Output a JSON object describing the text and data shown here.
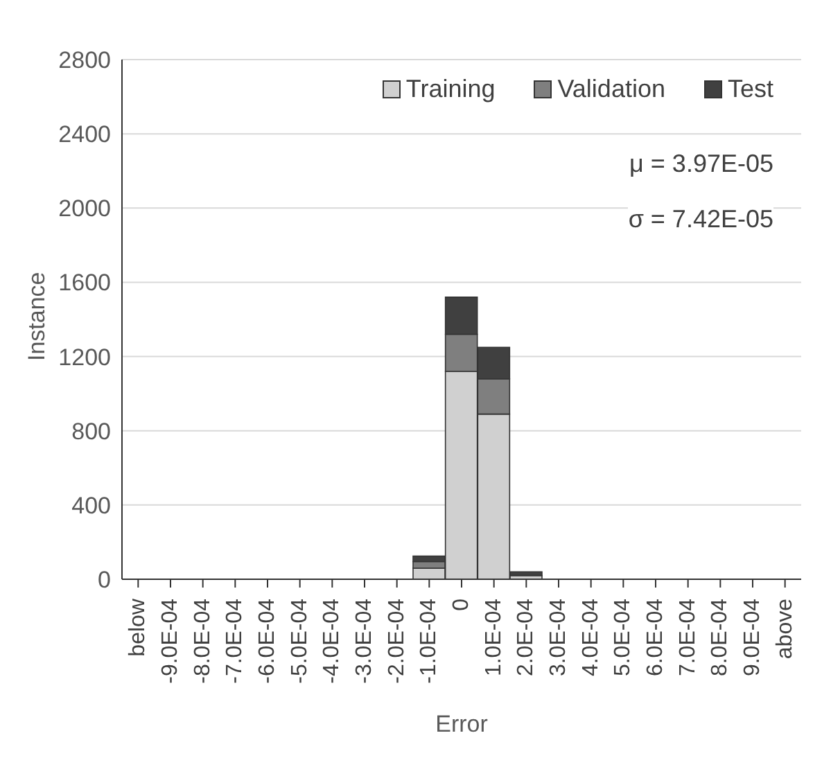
{
  "chart_data": {
    "type": "bar",
    "stacked": true,
    "xlabel": "Error",
    "ylabel": "Instance",
    "categories": [
      "below",
      "-9.0E-04",
      "-8.0E-04",
      "-7.0E-04",
      "-6.0E-04",
      "-5.0E-04",
      "-4.0E-04",
      "-3.0E-04",
      "-2.0E-04",
      "-1.0E-04",
      "0",
      "1.0E-04",
      "2.0E-04",
      "3.0E-04",
      "4.0E-04",
      "5.0E-04",
      "6.0E-04",
      "7.0E-04",
      "8.0E-04",
      "9.0E-04",
      "above"
    ],
    "series": [
      {
        "name": "Training",
        "color": "#d0d0d0",
        "values": [
          0,
          0,
          0,
          0,
          0,
          0,
          0,
          0,
          0,
          60,
          1120,
          890,
          20,
          0,
          0,
          0,
          0,
          0,
          0,
          0,
          0
        ]
      },
      {
        "name": "Validation",
        "color": "#7f7f7f",
        "values": [
          0,
          0,
          0,
          0,
          0,
          0,
          0,
          0,
          0,
          35,
          200,
          190,
          0,
          0,
          0,
          0,
          0,
          0,
          0,
          0,
          0
        ]
      },
      {
        "name": "Test",
        "color": "#404040",
        "values": [
          0,
          0,
          0,
          0,
          0,
          0,
          0,
          0,
          0,
          30,
          200,
          170,
          20,
          0,
          0,
          0,
          0,
          0,
          0,
          0,
          0
        ]
      }
    ],
    "ylim": [
      0,
      2800
    ],
    "yticks": [
      0,
      400,
      800,
      1200,
      1600,
      2000,
      2400,
      2800
    ],
    "grid": "y",
    "legend": "top right",
    "annotations": [
      "μ =  3.97E-05",
      "σ =  7.42E-05"
    ]
  }
}
